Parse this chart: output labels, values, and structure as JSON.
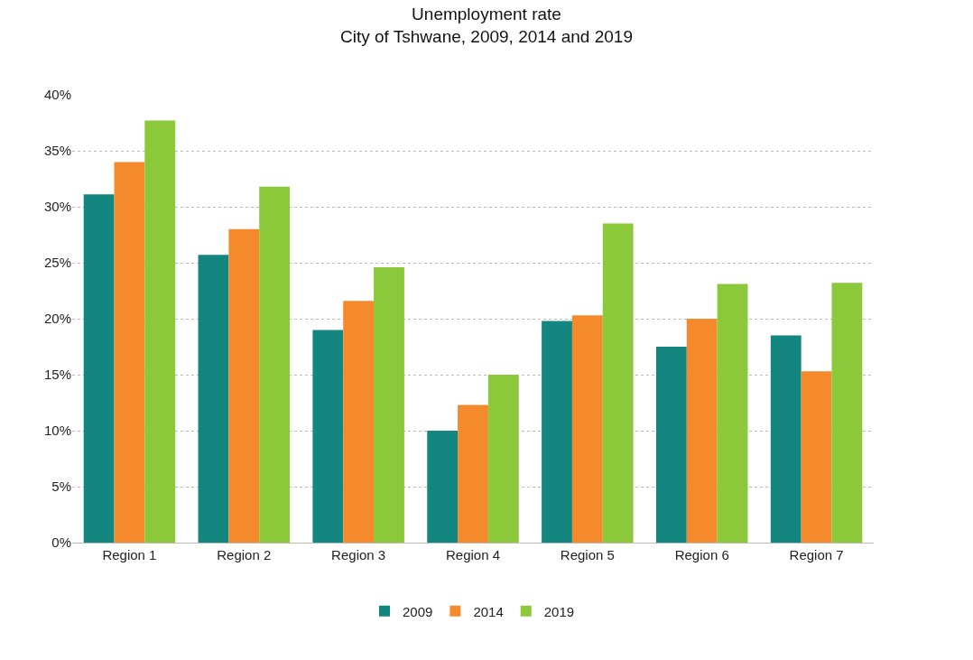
{
  "chart_data": {
    "type": "bar",
    "title": "Unemployment rate\nCity of Tshwane, 2009, 2014 and 2019",
    "categories": [
      "Region 1",
      "Region 2",
      "Region 3",
      "Region 4",
      "Region 5",
      "Region 6",
      "Region 7"
    ],
    "series": [
      {
        "name": "2009",
        "color": "#13877f",
        "values": [
          31.1,
          25.7,
          19.0,
          10.0,
          19.8,
          17.5,
          18.5
        ]
      },
      {
        "name": "2014",
        "color": "#f58a2c",
        "values": [
          34.0,
          28.0,
          21.6,
          12.3,
          20.3,
          20.0,
          15.3
        ]
      },
      {
        "name": "2019",
        "color": "#8bc83a",
        "values": [
          37.7,
          31.8,
          24.6,
          15.0,
          28.5,
          23.1,
          23.2
        ]
      }
    ],
    "ylim": [
      0,
      40
    ],
    "yticks": [
      {
        "value": 0,
        "label": "0%"
      },
      {
        "value": 5,
        "label": "5%"
      },
      {
        "value": 10,
        "label": "10%"
      },
      {
        "value": 15,
        "label": "15%"
      },
      {
        "value": 20,
        "label": "20%"
      },
      {
        "value": 25,
        "label": "25%"
      },
      {
        "value": 30,
        "label": "30%"
      },
      {
        "value": 35,
        "label": "35%"
      },
      {
        "value": 40,
        "label": "40%"
      }
    ],
    "grid": "y",
    "legend": "bottom"
  }
}
